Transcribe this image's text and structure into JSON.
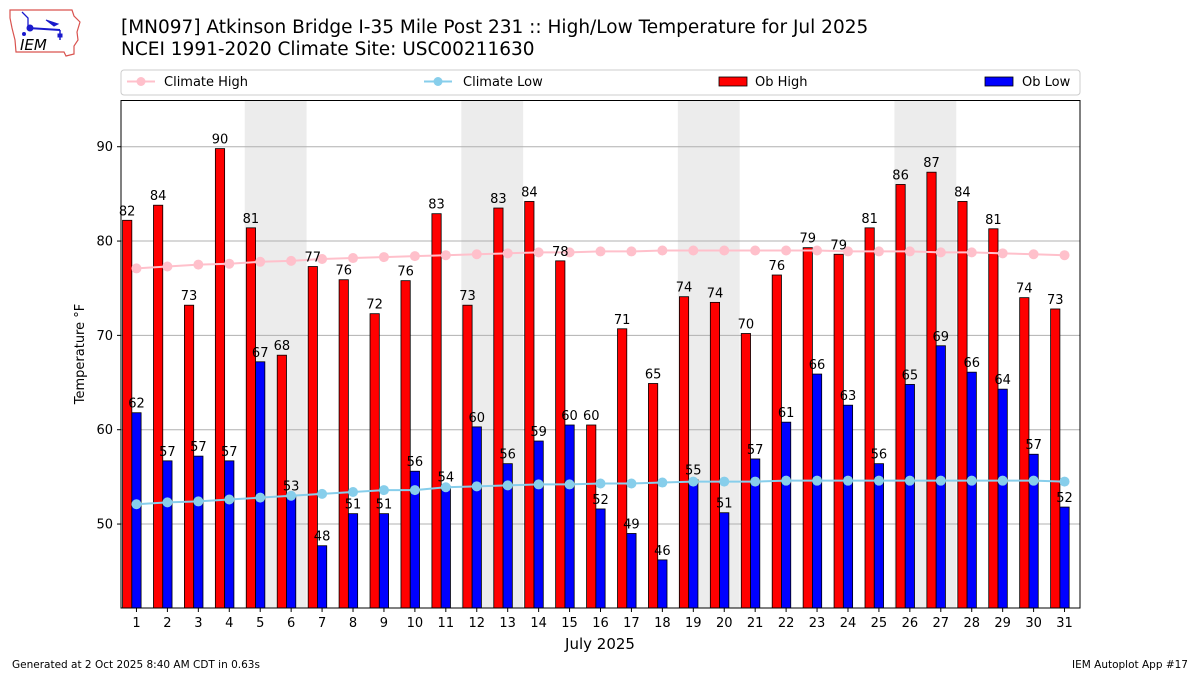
{
  "header": {
    "title_line1": "[MN097] Atkinson Bridge I-35 Mile Post 231 :: High/Low Temperature for Jul 2025",
    "title_line2": "NCEI 1991-2020 Climate Site: USC00211630",
    "logo_text": "IEM"
  },
  "footer": {
    "generated": "Generated at 2 Oct 2025 8:40 AM CDT in 0.63s",
    "app": "IEM Autoplot App #17"
  },
  "colors": {
    "ob_high": "#ff0000",
    "ob_low": "#0000ff",
    "climate_high": "#ffc0cb",
    "climate_low": "#87ceeb",
    "weekend_shade": "#ececec",
    "grid": "#b0b0b0"
  },
  "chart_data": {
    "type": "bar",
    "title": "[MN097] Atkinson Bridge I-35 Mile Post 231 :: High/Low Temperature for Jul 2025",
    "subtitle": "NCEI 1991-2020 Climate Site: USC00211630",
    "xlabel": "July 2025",
    "ylabel": "Temperature °F",
    "ylim": [
      41.1,
      94.9
    ],
    "xlim": [
      0.5,
      31.5
    ],
    "yticks": [
      50,
      60,
      70,
      80,
      90
    ],
    "grid": "horizontal",
    "legend_position": "top (above plot, spanning width)",
    "categories": [
      1,
      2,
      3,
      4,
      5,
      6,
      7,
      8,
      9,
      10,
      11,
      12,
      13,
      14,
      15,
      16,
      17,
      18,
      19,
      20,
      21,
      22,
      23,
      24,
      25,
      26,
      27,
      28,
      29,
      30,
      31
    ],
    "weekend_shaded_days": [
      [
        5,
        6
      ],
      [
        12,
        13
      ],
      [
        19,
        20
      ],
      [
        26,
        27
      ]
    ],
    "series": [
      {
        "name": "Ob High",
        "kind": "bar",
        "values": [
          82.2,
          83.8,
          73.2,
          89.8,
          81.4,
          67.9,
          77.3,
          75.9,
          72.3,
          75.8,
          82.9,
          73.2,
          83.5,
          84.2,
          77.9,
          60.5,
          70.7,
          64.9,
          74.1,
          73.5,
          70.2,
          76.4,
          79.3,
          78.6,
          81.4,
          86.0,
          87.3,
          84.2,
          81.3,
          74.0,
          72.8
        ],
        "labels": [
          82,
          84,
          73,
          90,
          81,
          68,
          77,
          76,
          72,
          76,
          83,
          73,
          83,
          84,
          78,
          60,
          71,
          65,
          74,
          74,
          70,
          76,
          79,
          79,
          81,
          86,
          87,
          84,
          81,
          74,
          73
        ]
      },
      {
        "name": "Ob Low",
        "kind": "bar",
        "values": [
          61.8,
          56.7,
          57.2,
          56.7,
          67.2,
          53.0,
          47.7,
          51.1,
          51.1,
          55.6,
          54.0,
          60.3,
          56.4,
          58.8,
          60.5,
          51.6,
          49.0,
          46.2,
          54.7,
          51.2,
          56.9,
          60.8,
          65.9,
          62.6,
          56.4,
          64.8,
          68.9,
          66.1,
          64.3,
          57.4,
          51.8
        ],
        "labels": [
          62,
          57,
          57,
          57,
          67,
          53,
          48,
          51,
          51,
          56,
          54,
          60,
          56,
          59,
          60,
          52,
          49,
          46,
          55,
          51,
          57,
          61,
          66,
          63,
          56,
          65,
          69,
          66,
          64,
          57,
          52
        ]
      },
      {
        "name": "Climate High",
        "kind": "line",
        "values": [
          77.1,
          77.3,
          77.5,
          77.6,
          77.8,
          77.9,
          78.1,
          78.2,
          78.3,
          78.4,
          78.5,
          78.6,
          78.7,
          78.8,
          78.8,
          78.9,
          78.9,
          79.0,
          79.0,
          79.0,
          79.0,
          79.0,
          79.0,
          78.9,
          78.9,
          78.9,
          78.8,
          78.8,
          78.7,
          78.6,
          78.5
        ]
      },
      {
        "name": "Climate Low",
        "kind": "line",
        "values": [
          52.1,
          52.3,
          52.4,
          52.6,
          52.8,
          53.0,
          53.2,
          53.4,
          53.6,
          53.6,
          53.9,
          54.0,
          54.1,
          54.2,
          54.2,
          54.3,
          54.3,
          54.4,
          54.5,
          54.5,
          54.5,
          54.6,
          54.6,
          54.6,
          54.6,
          54.6,
          54.6,
          54.6,
          54.6,
          54.6,
          54.5
        ]
      }
    ],
    "legend": [
      "Climate High",
      "Climate Low",
      "Ob High",
      "Ob Low"
    ]
  }
}
